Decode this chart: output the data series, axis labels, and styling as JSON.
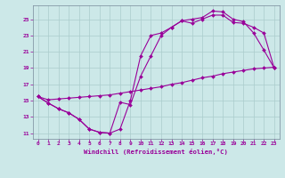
{
  "xlabel": "Windchill (Refroidissement éolien,°C)",
  "background_color": "#cce8e8",
  "line_color": "#990099",
  "grid_color": "#aacccc",
  "spine_color": "#778899",
  "xlim": [
    -0.5,
    23.5
  ],
  "ylim": [
    10.3,
    26.7
  ],
  "xticks": [
    0,
    1,
    2,
    3,
    4,
    5,
    6,
    7,
    8,
    9,
    10,
    11,
    12,
    13,
    14,
    15,
    16,
    17,
    18,
    19,
    20,
    21,
    22,
    23
  ],
  "yticks": [
    11,
    13,
    15,
    17,
    19,
    21,
    23,
    25
  ],
  "line1_x": [
    0,
    1,
    2,
    3,
    4,
    5,
    6,
    7,
    8,
    9,
    10,
    11,
    12,
    13,
    14,
    15,
    16,
    17,
    18,
    19,
    20,
    21,
    22,
    23
  ],
  "line1_y": [
    15.5,
    14.7,
    14.0,
    13.5,
    12.7,
    11.5,
    11.1,
    11.0,
    11.5,
    15.0,
    20.5,
    23.0,
    23.3,
    24.0,
    24.8,
    25.0,
    25.2,
    26.0,
    25.9,
    25.0,
    24.7,
    23.3,
    21.2,
    19.0
  ],
  "line2_x": [
    0,
    1,
    2,
    3,
    4,
    5,
    6,
    7,
    8,
    9,
    10,
    11,
    12,
    13,
    14,
    15,
    16,
    17,
    18,
    19,
    20,
    21,
    22,
    23
  ],
  "line2_y": [
    15.5,
    14.7,
    14.0,
    13.5,
    12.7,
    11.5,
    11.1,
    11.0,
    14.8,
    14.5,
    18.0,
    20.5,
    23.0,
    24.0,
    24.8,
    24.5,
    25.0,
    25.5,
    25.5,
    24.6,
    24.5,
    24.0,
    23.3,
    19.0
  ],
  "line3_x": [
    0,
    1,
    2,
    3,
    4,
    5,
    6,
    7,
    8,
    9,
    10,
    11,
    12,
    13,
    14,
    15,
    16,
    17,
    18,
    19,
    20,
    21,
    22,
    23
  ],
  "line3_y": [
    15.5,
    15.1,
    15.2,
    15.3,
    15.4,
    15.5,
    15.6,
    15.7,
    15.9,
    16.1,
    16.3,
    16.5,
    16.7,
    17.0,
    17.2,
    17.5,
    17.8,
    18.0,
    18.3,
    18.5,
    18.7,
    18.9,
    19.0,
    19.1
  ]
}
